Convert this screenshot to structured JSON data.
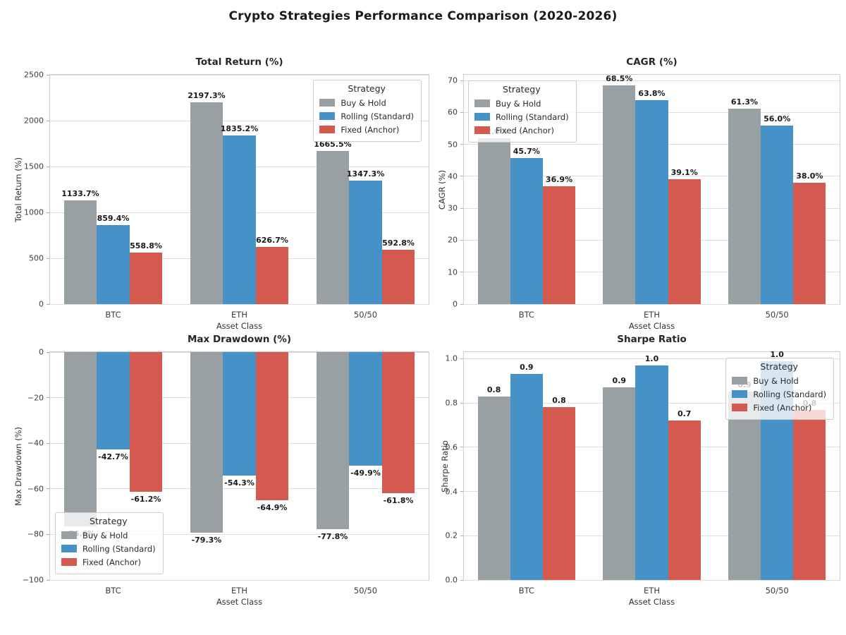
{
  "figure": {
    "title": "Crypto Strategies Performance Comparison (2020-2026)"
  },
  "strategy_colors": {
    "buy_and_hold": "#98a0a4",
    "rolling_standard": "#4691c6",
    "fixed_anchor": "#d4594e"
  },
  "chart_data": [
    {
      "type": "bar",
      "title": "Total Return (%)",
      "xlabel": "Asset Class",
      "ylabel": "Total Return (%)",
      "categories": [
        "BTC",
        "ETH",
        "50/50"
      ],
      "ylim": [
        0,
        2500
      ],
      "yticks": [
        0,
        500,
        1000,
        1500,
        2000,
        2500
      ],
      "ytick_labels": [
        "0",
        "500",
        "1000",
        "1500",
        "2000",
        "2500"
      ],
      "grid": true,
      "legend": {
        "title": "Strategy",
        "position": "upper right"
      },
      "series": [
        {
          "name": "Buy & Hold",
          "color": "#98a0a4",
          "values": [
            1133.7,
            2197.3,
            1665.5
          ],
          "labels": [
            "1133.7%",
            "2197.3%",
            "1665.5%"
          ]
        },
        {
          "name": "Rolling (Standard)",
          "color": "#4691c6",
          "values": [
            859.4,
            1835.2,
            1347.3
          ],
          "labels": [
            "859.4%",
            "1835.2%",
            "1347.3%"
          ]
        },
        {
          "name": "Fixed (Anchor)",
          "color": "#d4594e",
          "values": [
            558.8,
            626.7,
            592.8
          ],
          "labels": [
            "558.8%",
            "626.7%",
            "592.8%"
          ]
        }
      ]
    },
    {
      "type": "bar",
      "title": "CAGR (%)",
      "xlabel": "Asset Class",
      "ylabel": "CAGR (%)",
      "categories": [
        "BTC",
        "ETH",
        "50/50"
      ],
      "ylim": [
        0,
        71.8
      ],
      "yticks": [
        0,
        10,
        20,
        30,
        40,
        50,
        60,
        70
      ],
      "ytick_labels": [
        "0",
        "10",
        "20",
        "30",
        "40",
        "50",
        "60",
        "70"
      ],
      "grid": true,
      "legend": {
        "title": "Strategy",
        "position": "upper left"
      },
      "series": [
        {
          "name": "Buy & Hold",
          "color": "#98a0a4",
          "values": [
            52.0,
            68.5,
            61.3
          ],
          "labels": [
            "52.0%",
            "68.5%",
            "61.3%"
          ]
        },
        {
          "name": "Rolling (Standard)",
          "color": "#4691c6",
          "values": [
            45.7,
            63.8,
            56.0
          ],
          "labels": [
            "45.7%",
            "63.8%",
            "56.0%"
          ]
        },
        {
          "name": "Fixed (Anchor)",
          "color": "#d4594e",
          "values": [
            36.9,
            39.1,
            38.0
          ],
          "labels": [
            "36.9%",
            "39.1%",
            "38.0%"
          ]
        }
      ]
    },
    {
      "type": "bar",
      "title": "Max Drawdown (%)",
      "xlabel": "Asset Class",
      "ylabel": "Max Drawdown (%)",
      "categories": [
        "BTC",
        "ETH",
        "50/50"
      ],
      "ylim": [
        -100,
        0
      ],
      "yticks": [
        0,
        -20,
        -40,
        -60,
        -80,
        -100
      ],
      "ytick_labels": [
        "0",
        "−20",
        "−40",
        "−60",
        "−80",
        "−100"
      ],
      "grid": true,
      "legend": {
        "title": "Strategy",
        "position": "lower left"
      },
      "series": [
        {
          "name": "Buy & Hold",
          "color": "#98a0a4",
          "values": [
            -76.6,
            -79.3,
            -77.8
          ],
          "labels": [
            "-76.6%",
            "-79.3%",
            "-77.8%"
          ]
        },
        {
          "name": "Rolling (Standard)",
          "color": "#4691c6",
          "values": [
            -42.7,
            -54.3,
            -49.9
          ],
          "labels": [
            "-42.7%",
            "-54.3%",
            "-49.9%"
          ]
        },
        {
          "name": "Fixed (Anchor)",
          "color": "#d4594e",
          "values": [
            -61.2,
            -64.9,
            -61.8
          ],
          "labels": [
            "-61.2%",
            "-64.9%",
            "-61.8%"
          ]
        }
      ]
    },
    {
      "type": "bar",
      "title": "Sharpe Ratio",
      "xlabel": "Asset Class",
      "ylabel": "Sharpe Ratio",
      "categories": [
        "BTC",
        "ETH",
        "50/50"
      ],
      "ylim": [
        0,
        1.03
      ],
      "yticks": [
        0,
        0.2,
        0.4,
        0.6,
        0.8,
        1.0
      ],
      "ytick_labels": [
        "0.0",
        "0.2",
        "0.4",
        "0.6",
        "0.8",
        "1.0"
      ],
      "grid": true,
      "legend": {
        "title": "Strategy",
        "position": "upper right"
      },
      "series": [
        {
          "name": "Buy & Hold",
          "color": "#98a0a4",
          "values": [
            0.83,
            0.87,
            0.85
          ],
          "labels": [
            "0.8",
            "0.9",
            "0.9"
          ]
        },
        {
          "name": "Rolling (Standard)",
          "color": "#4691c6",
          "values": [
            0.93,
            0.97,
            0.99
          ],
          "labels": [
            "0.9",
            "1.0",
            "1.0"
          ]
        },
        {
          "name": "Fixed (Anchor)",
          "color": "#d4594e",
          "values": [
            0.78,
            0.72,
            0.77
          ],
          "labels": [
            "0.8",
            "0.7",
            "0.8"
          ]
        }
      ]
    }
  ]
}
